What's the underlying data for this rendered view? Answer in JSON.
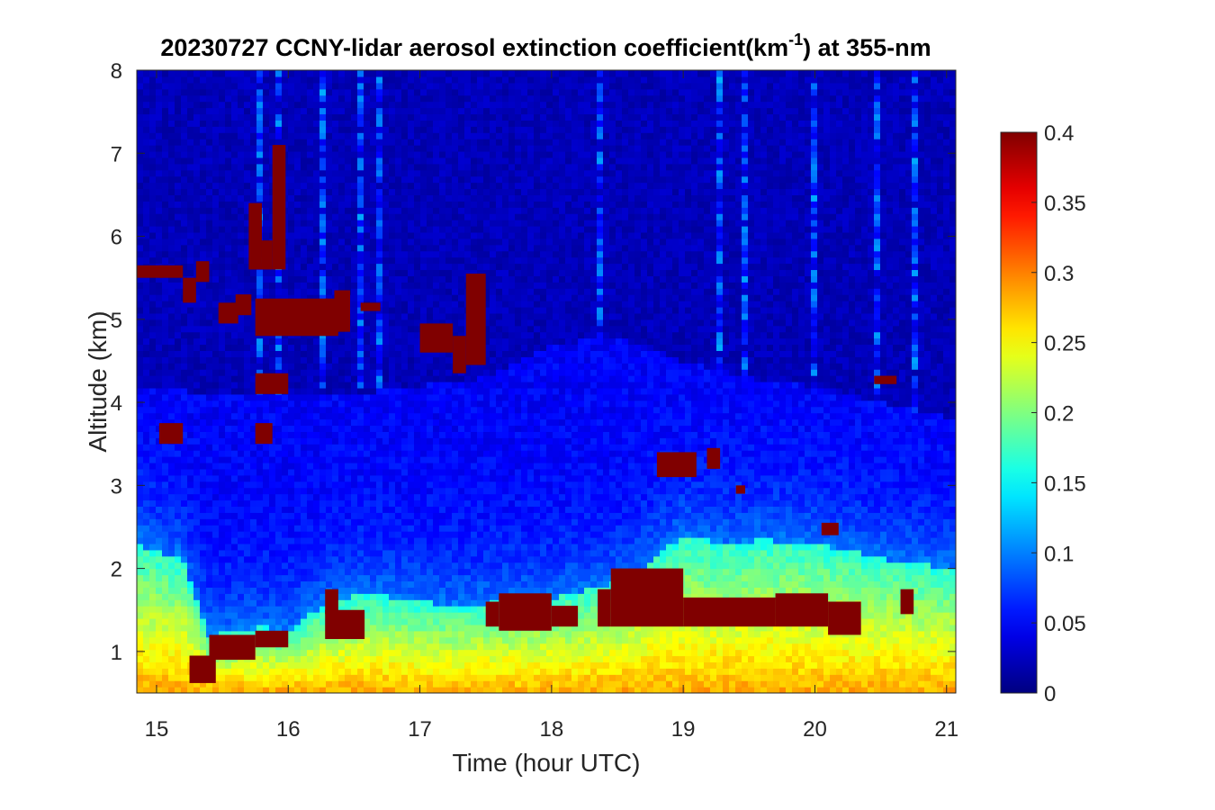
{
  "title": {
    "prefix": "20230727 CCNY-lidar aerosol extinction coefficient(km",
    "sup": "-1",
    "suffix": ") at 355-nm"
  },
  "chart_data": {
    "type": "heatmap",
    "title": "20230727 CCNY-lidar aerosol extinction coefficient(km-1) at 355-nm",
    "xlabel": "Time (hour UTC)",
    "ylabel": "Altitude (km)",
    "xlim": [
      14.85,
      21.07
    ],
    "ylim": [
      0.5,
      8
    ],
    "xticks": [
      15,
      16,
      17,
      18,
      19,
      20,
      21
    ],
    "yticks": [
      1,
      2,
      3,
      4,
      5,
      6,
      7,
      8
    ],
    "colorbar": {
      "colormap": "jet",
      "range": [
        0,
        0.4
      ],
      "ticks": [
        0,
        0.05,
        0.1,
        0.15,
        0.2,
        0.25,
        0.3,
        0.35,
        0.4
      ],
      "tick_labels": [
        "0",
        "0.05",
        "0.1",
        "0.15",
        "0.2",
        "0.25",
        "0.3",
        "0.35",
        "0.4"
      ]
    },
    "boundary_layer_top": {
      "time": [
        14.85,
        15.2,
        15.4,
        15.6,
        15.8,
        16.0,
        16.3,
        16.6,
        17.0,
        17.3,
        17.6,
        18.0,
        18.3,
        18.6,
        19.0,
        19.3,
        19.6,
        20.0,
        20.3,
        20.6,
        21.07
      ],
      "altitude_km": [
        2.3,
        2.1,
        1.2,
        1.25,
        1.3,
        1.25,
        1.6,
        1.7,
        1.6,
        1.55,
        1.6,
        1.65,
        1.75,
        1.9,
        2.4,
        2.3,
        2.35,
        2.3,
        2.2,
        2.1,
        2.0
      ]
    },
    "free_troposphere_top": {
      "time": [
        14.85,
        15.5,
        16.5,
        17.5,
        18.0,
        18.5,
        19.0,
        19.5,
        20.0,
        20.5,
        21.07
      ],
      "altitude_km": [
        4.2,
        4.1,
        4.1,
        4.3,
        4.7,
        4.8,
        4.5,
        4.3,
        4.2,
        4.0,
        3.8
      ]
    },
    "high_extinction_layers": [
      {
        "t0": 14.85,
        "t1": 15.05,
        "z0": 5.5,
        "z1": 5.65
      },
      {
        "t0": 15.02,
        "t1": 15.2,
        "z0": 5.5,
        "z1": 5.65
      },
      {
        "t0": 15.02,
        "t1": 15.2,
        "z0": 3.5,
        "z1": 3.75
      },
      {
        "t0": 15.2,
        "t1": 15.3,
        "z0": 5.2,
        "z1": 5.5
      },
      {
        "t0": 15.3,
        "t1": 15.4,
        "z0": 5.45,
        "z1": 5.7
      },
      {
        "t0": 15.47,
        "t1": 15.62,
        "z0": 4.95,
        "z1": 5.2
      },
      {
        "t0": 15.6,
        "t1": 15.72,
        "z0": 5.05,
        "z1": 5.3
      },
      {
        "t0": 15.7,
        "t1": 15.8,
        "z0": 5.6,
        "z1": 6.4
      },
      {
        "t0": 15.8,
        "t1": 15.88,
        "z0": 5.6,
        "z1": 5.95
      },
      {
        "t0": 15.88,
        "t1": 15.98,
        "z0": 5.6,
        "z1": 7.1
      },
      {
        "t0": 15.75,
        "t1": 16.3,
        "z0": 4.8,
        "z1": 5.25
      },
      {
        "t0": 15.75,
        "t1": 15.88,
        "z0": 3.5,
        "z1": 3.75
      },
      {
        "t0": 15.75,
        "t1": 16.0,
        "z0": 4.1,
        "z1": 4.35
      },
      {
        "t0": 16.28,
        "t1": 16.38,
        "z0": 4.8,
        "z1": 5.25
      },
      {
        "t0": 16.35,
        "t1": 16.47,
        "z0": 4.85,
        "z1": 5.35
      },
      {
        "t0": 16.55,
        "t1": 16.7,
        "z0": 5.1,
        "z1": 5.2
      },
      {
        "t0": 17.0,
        "t1": 17.25,
        "z0": 4.6,
        "z1": 4.95
      },
      {
        "t0": 17.25,
        "t1": 17.35,
        "z0": 4.35,
        "z1": 4.8
      },
      {
        "t0": 17.35,
        "t1": 17.5,
        "z0": 4.45,
        "z1": 5.55
      },
      {
        "t0": 18.8,
        "t1": 19.1,
        "z0": 3.1,
        "z1": 3.4
      },
      {
        "t0": 19.18,
        "t1": 19.28,
        "z0": 3.2,
        "z1": 3.45
      },
      {
        "t0": 19.4,
        "t1": 19.47,
        "z0": 2.9,
        "z1": 3.0
      },
      {
        "t0": 20.45,
        "t1": 20.62,
        "z0": 4.22,
        "z1": 4.32
      },
      {
        "t0": 20.05,
        "t1": 20.18,
        "z0": 2.4,
        "z1": 2.55
      },
      {
        "t0": 15.25,
        "t1": 15.45,
        "z0": 0.62,
        "z1": 0.95
      },
      {
        "t0": 15.4,
        "t1": 15.75,
        "z0": 0.9,
        "z1": 1.2
      },
      {
        "t0": 15.75,
        "t1": 16.0,
        "z0": 1.05,
        "z1": 1.25
      },
      {
        "t0": 16.28,
        "t1": 16.58,
        "z0": 1.15,
        "z1": 1.5
      },
      {
        "t0": 16.28,
        "t1": 16.38,
        "z0": 1.45,
        "z1": 1.75
      },
      {
        "t0": 17.6,
        "t1": 18.0,
        "z0": 1.25,
        "z1": 1.7
      },
      {
        "t0": 17.5,
        "t1": 17.6,
        "z0": 1.3,
        "z1": 1.6
      },
      {
        "t0": 18.0,
        "t1": 18.2,
        "z0": 1.3,
        "z1": 1.55
      },
      {
        "t0": 18.35,
        "t1": 18.45,
        "z0": 1.3,
        "z1": 1.75
      },
      {
        "t0": 18.45,
        "t1": 19.0,
        "z0": 1.3,
        "z1": 2.0
      },
      {
        "t0": 19.0,
        "t1": 19.7,
        "z0": 1.3,
        "z1": 1.65
      },
      {
        "t0": 19.7,
        "t1": 20.1,
        "z0": 1.3,
        "z1": 1.7
      },
      {
        "t0": 20.1,
        "t1": 20.35,
        "z0": 1.2,
        "z1": 1.6
      },
      {
        "t0": 20.65,
        "t1": 20.75,
        "z0": 1.45,
        "z1": 1.75
      }
    ]
  }
}
